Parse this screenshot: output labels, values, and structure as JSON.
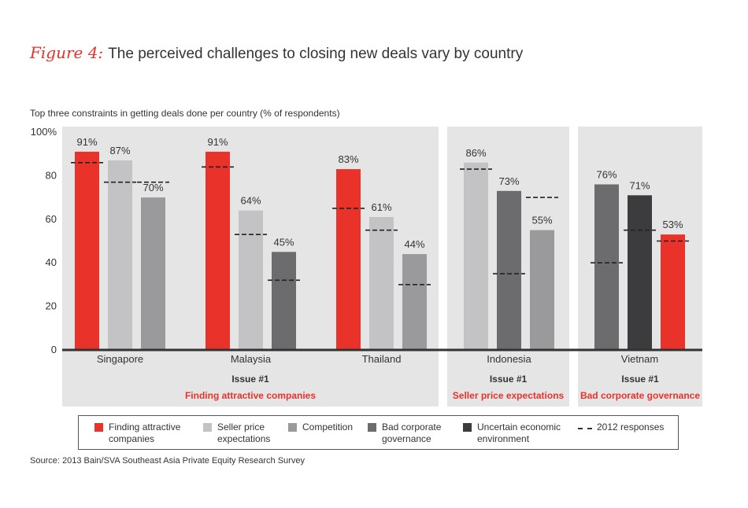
{
  "header": {
    "figure_label": "Figure 4:",
    "title": "The perceived challenges to closing new deals vary by country",
    "subtitle": "Top three constraints in getting deals done per country (% of respondents)"
  },
  "source": "Source: 2013 Bain/SVA Southeast Asia Private Equity Research Survey",
  "colors": {
    "finding": "#e8322a",
    "seller": "#c3c3c5",
    "competition": "#9a9a9c",
    "governance": "#6c6c6e",
    "economic": "#3c3c3e",
    "panel": "#e5e5e6",
    "accent": "#e8322a"
  },
  "legend": [
    {
      "key": "finding",
      "label_lines": [
        "Finding attractive",
        "companies"
      ]
    },
    {
      "key": "seller",
      "label_lines": [
        "Seller price",
        "expectations"
      ]
    },
    {
      "key": "competition",
      "label_lines": [
        "Competition"
      ]
    },
    {
      "key": "governance",
      "label_lines": [
        "Bad corporate",
        "governance"
      ]
    },
    {
      "key": "economic",
      "label_lines": [
        "Uncertain economic",
        "environment"
      ]
    },
    {
      "key": "dash",
      "label_lines": [
        "2012 responses"
      ]
    }
  ],
  "chart_data": {
    "type": "bar",
    "title": "The perceived challenges to closing new deals vary by country",
    "ylabel": "% of respondents",
    "ylim": [
      0,
      100
    ],
    "yticks": [
      "0",
      "20",
      "40",
      "60",
      "80",
      "100%"
    ],
    "groups": [
      {
        "country": "Singapore",
        "panel": 0,
        "bars": [
          {
            "series": "finding",
            "value": 91,
            "label": "91%",
            "prior": 86
          },
          {
            "series": "seller",
            "value": 87,
            "label": "87%",
            "prior": 77
          },
          {
            "series": "competition",
            "value": 70,
            "label": "70%",
            "prior": 77
          }
        ]
      },
      {
        "country": "Malaysia",
        "panel": 0,
        "bars": [
          {
            "series": "finding",
            "value": 91,
            "label": "91%",
            "prior": 84
          },
          {
            "series": "seller",
            "value": 64,
            "label": "64%",
            "prior": 53
          },
          {
            "series": "governance",
            "value": 45,
            "label": "45%",
            "prior": 32
          }
        ]
      },
      {
        "country": "Thailand",
        "panel": 0,
        "bars": [
          {
            "series": "finding",
            "value": 83,
            "label": "83%",
            "prior": 65
          },
          {
            "series": "seller",
            "value": 61,
            "label": "61%",
            "prior": 55
          },
          {
            "series": "competition",
            "value": 44,
            "label": "44%",
            "prior": 30
          }
        ]
      },
      {
        "country": "Indonesia",
        "panel": 1,
        "bars": [
          {
            "series": "seller",
            "value": 86,
            "label": "86%",
            "prior": 83
          },
          {
            "series": "governance",
            "value": 73,
            "label": "73%",
            "prior": 35
          },
          {
            "series": "competition",
            "value": 55,
            "label": "55%",
            "prior": 70
          }
        ]
      },
      {
        "country": "Vietnam",
        "panel": 2,
        "bars": [
          {
            "series": "governance",
            "value": 76,
            "label": "76%",
            "prior": 40
          },
          {
            "series": "economic",
            "value": 71,
            "label": "71%",
            "prior": 55
          },
          {
            "series": "finding",
            "value": 53,
            "label": "53%",
            "prior": 50
          }
        ]
      }
    ],
    "panels": [
      {
        "issue": "Issue #1",
        "issue_text": "Finding attractive companies"
      },
      {
        "issue": "Issue #1",
        "issue_text": "Seller price expectations"
      },
      {
        "issue": "Issue #1",
        "issue_text": "Bad corporate governance"
      }
    ]
  }
}
